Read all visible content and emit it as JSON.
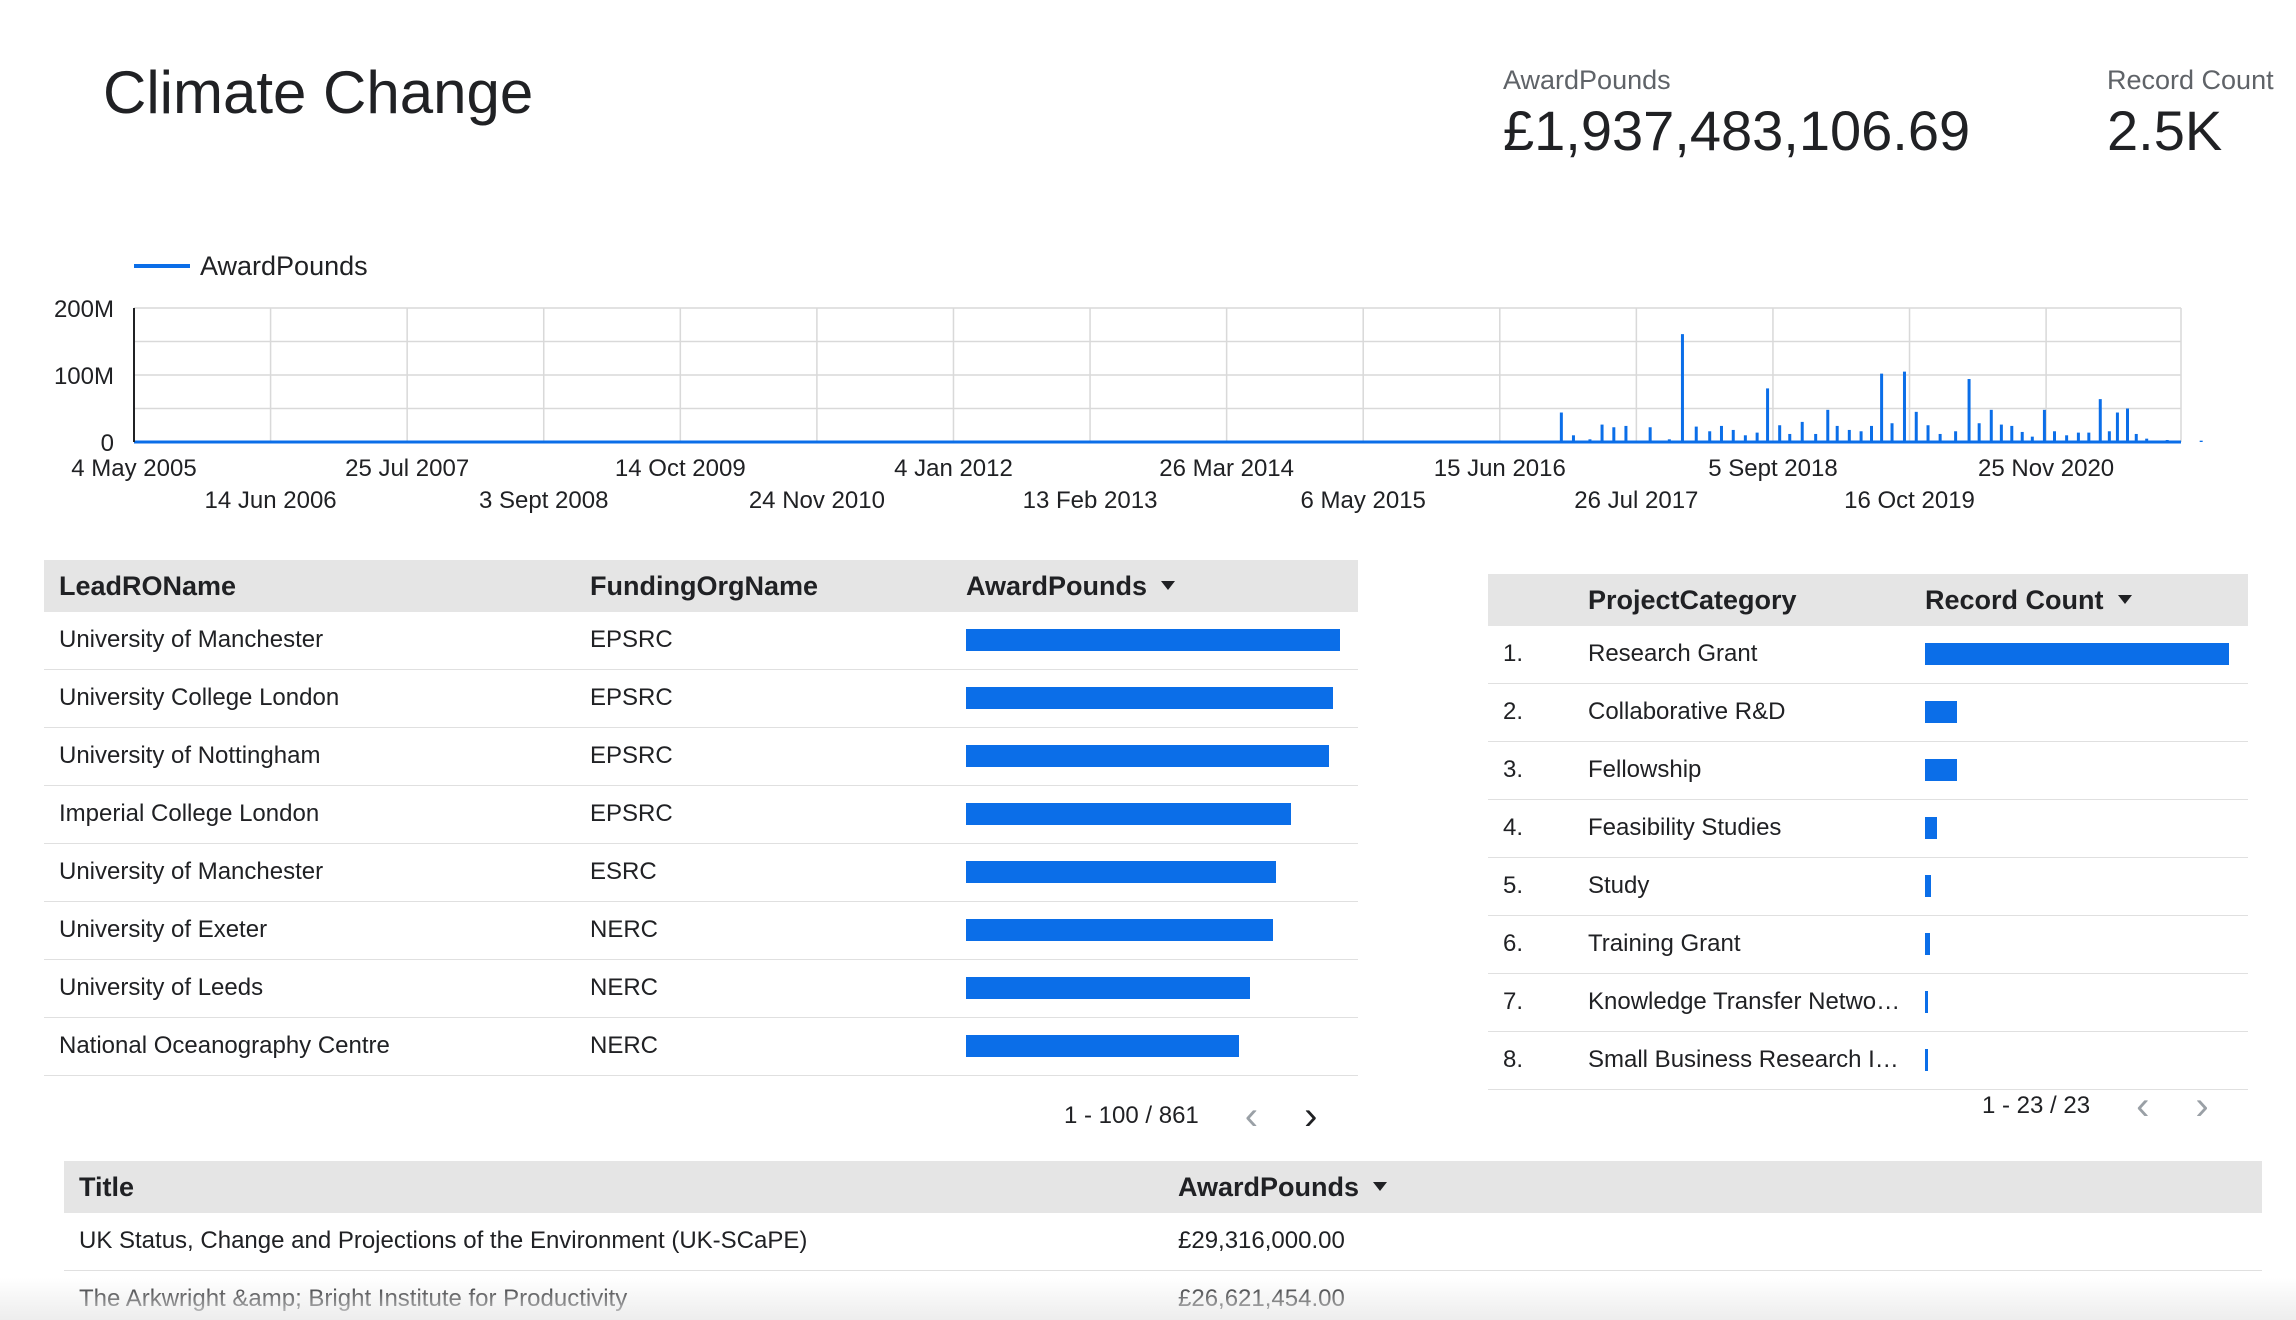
{
  "report": {
    "title": "Climate Change"
  },
  "scorecards": {
    "award": {
      "label": "AwardPounds",
      "value": "£1,937,483,106.69"
    },
    "count": {
      "label": "Record Count",
      "value": "2.5K"
    }
  },
  "colors": {
    "accent": "#0b6ee8",
    "header_bg": "#e5e5e5",
    "grid": "#d9d9d9"
  },
  "chart_data": {
    "type": "bar",
    "title": "",
    "legend": {
      "entries": [
        "AwardPounds"
      ],
      "placement": "top-left"
    },
    "xlabel": "",
    "ylabel": "",
    "x_range": [
      "2005-05-04",
      "2021-12-31"
    ],
    "ylim": [
      0,
      200000000
    ],
    "y_ticks": [
      {
        "value": 0,
        "label": "0"
      },
      {
        "value": 100000000,
        "label": "100M"
      },
      {
        "value": 200000000,
        "label": "200M"
      }
    ],
    "x_ticks": [
      {
        "date": "2005-05-04",
        "label": "4 May 2005",
        "row": 0
      },
      {
        "date": "2006-06-14",
        "label": "14 Jun 2006",
        "row": 1
      },
      {
        "date": "2007-07-25",
        "label": "25 Jul 2007",
        "row": 0
      },
      {
        "date": "2008-09-03",
        "label": "3 Sept 2008",
        "row": 1
      },
      {
        "date": "2009-10-14",
        "label": "14 Oct 2009",
        "row": 0
      },
      {
        "date": "2010-11-24",
        "label": "24 Nov 2010",
        "row": 1
      },
      {
        "date": "2012-01-04",
        "label": "4 Jan 2012",
        "row": 0
      },
      {
        "date": "2013-02-13",
        "label": "13 Feb 2013",
        "row": 1
      },
      {
        "date": "2014-03-26",
        "label": "26 Mar 2014",
        "row": 0
      },
      {
        "date": "2015-05-06",
        "label": "6 May 2015",
        "row": 1
      },
      {
        "date": "2016-06-15",
        "label": "15 Jun 2016",
        "row": 0
      },
      {
        "date": "2017-07-26",
        "label": "26 Jul 2017",
        "row": 1
      },
      {
        "date": "2018-09-05",
        "label": "5 Sept 2018",
        "row": 0
      },
      {
        "date": "2019-10-16",
        "label": "16 Oct 2019",
        "row": 1
      },
      {
        "date": "2020-11-25",
        "label": "25 Nov 2020",
        "row": 0
      }
    ],
    "grid": true,
    "series": [
      {
        "name": "AwardPounds",
        "points": [
          [
            "2016-12-15",
            44000000
          ],
          [
            "2017-01-20",
            10000000
          ],
          [
            "2017-03-10",
            4000000
          ],
          [
            "2017-04-15",
            26000000
          ],
          [
            "2017-05-20",
            22000000
          ],
          [
            "2017-06-25",
            24000000
          ],
          [
            "2017-09-05",
            22000000
          ],
          [
            "2017-11-01",
            4000000
          ],
          [
            "2017-12-10",
            161000000
          ],
          [
            "2018-01-20",
            23000000
          ],
          [
            "2018-03-01",
            16000000
          ],
          [
            "2018-04-05",
            24000000
          ],
          [
            "2018-05-10",
            18000000
          ],
          [
            "2018-06-15",
            10000000
          ],
          [
            "2018-07-20",
            14000000
          ],
          [
            "2018-08-20",
            80000000
          ],
          [
            "2018-09-25",
            25000000
          ],
          [
            "2018-10-25",
            12000000
          ],
          [
            "2018-12-01",
            30000000
          ],
          [
            "2019-01-10",
            12000000
          ],
          [
            "2019-02-15",
            48000000
          ],
          [
            "2019-03-15",
            24000000
          ],
          [
            "2019-04-20",
            18000000
          ],
          [
            "2019-05-25",
            16000000
          ],
          [
            "2019-06-25",
            24000000
          ],
          [
            "2019-07-25",
            102000000
          ],
          [
            "2019-08-25",
            28000000
          ],
          [
            "2019-10-01",
            105000000
          ],
          [
            "2019-11-05",
            45000000
          ],
          [
            "2019-12-10",
            25000000
          ],
          [
            "2020-01-15",
            12000000
          ],
          [
            "2020-03-01",
            16000000
          ],
          [
            "2020-04-10",
            94000000
          ],
          [
            "2020-05-10",
            28000000
          ],
          [
            "2020-06-15",
            48000000
          ],
          [
            "2020-07-15",
            26000000
          ],
          [
            "2020-08-15",
            24000000
          ],
          [
            "2020-09-15",
            15000000
          ],
          [
            "2020-10-15",
            8000000
          ],
          [
            "2020-11-20",
            48000000
          ],
          [
            "2020-12-20",
            16000000
          ],
          [
            "2021-01-25",
            10000000
          ],
          [
            "2021-03-01",
            14000000
          ],
          [
            "2021-04-01",
            14000000
          ],
          [
            "2021-05-05",
            64000000
          ],
          [
            "2021-06-01",
            16000000
          ],
          [
            "2021-06-25",
            44000000
          ],
          [
            "2021-07-25",
            50000000
          ],
          [
            "2021-08-20",
            12000000
          ],
          [
            "2021-09-20",
            5000000
          ],
          [
            "2021-10-20",
            2000000
          ],
          [
            "2021-11-20",
            3000000
          ],
          [
            "2021-12-20",
            2000000
          ],
          [
            "2022-03-01",
            2000000
          ]
        ]
      }
    ]
  },
  "org_table": {
    "headers": {
      "lead": "LeadROName",
      "funder": "FundingOrgName",
      "award": "AwardPounds"
    },
    "max_value": 100,
    "rows": [
      {
        "lead": "University of Manchester",
        "funder": "EPSRC",
        "value": 100
      },
      {
        "lead": "University College London",
        "funder": "EPSRC",
        "value": 98
      },
      {
        "lead": "University of Nottingham",
        "funder": "EPSRC",
        "value": 97
      },
      {
        "lead": "Imperial College London",
        "funder": "EPSRC",
        "value": 87
      },
      {
        "lead": "University of Manchester",
        "funder": "ESRC",
        "value": 83
      },
      {
        "lead": "University of Exeter",
        "funder": "NERC",
        "value": 82
      },
      {
        "lead": "University of Leeds",
        "funder": "NERC",
        "value": 76
      },
      {
        "lead": "National Oceanography Centre",
        "funder": "NERC",
        "value": 73
      }
    ],
    "pager": {
      "range": "1 - 100 / 861",
      "prev": "‹",
      "next": "›"
    }
  },
  "category_table": {
    "headers": {
      "category": "ProjectCategory",
      "count": "Record Count"
    },
    "max_value": 100,
    "rows": [
      {
        "rank": "1.",
        "category": "Research Grant",
        "value": 100
      },
      {
        "rank": "2.",
        "category": "Collaborative R&D",
        "value": 10.5
      },
      {
        "rank": "3.",
        "category": "Fellowship",
        "value": 10.5
      },
      {
        "rank": "4.",
        "category": "Feasibility Studies",
        "value": 4
      },
      {
        "rank": "5.",
        "category": "Study",
        "value": 2
      },
      {
        "rank": "6.",
        "category": "Training Grant",
        "value": 1.5
      },
      {
        "rank": "7.",
        "category": "Knowledge Transfer Netwo…",
        "value": 1
      },
      {
        "rank": "8.",
        "category": "Small Business Research I…",
        "value": 1
      }
    ],
    "pager": {
      "range": "1 - 23 / 23",
      "prev": "‹",
      "next": "›"
    }
  },
  "title_table": {
    "headers": {
      "title": "Title",
      "award": "AwardPounds"
    },
    "rows": [
      {
        "title": "UK Status, Change and Projections of the Environment (UK-SCaPE)",
        "award": "£29,316,000.00"
      },
      {
        "title": "The Arkwright &amp; Bright Institute for Productivity",
        "award": "£26,621,454.00"
      }
    ]
  }
}
